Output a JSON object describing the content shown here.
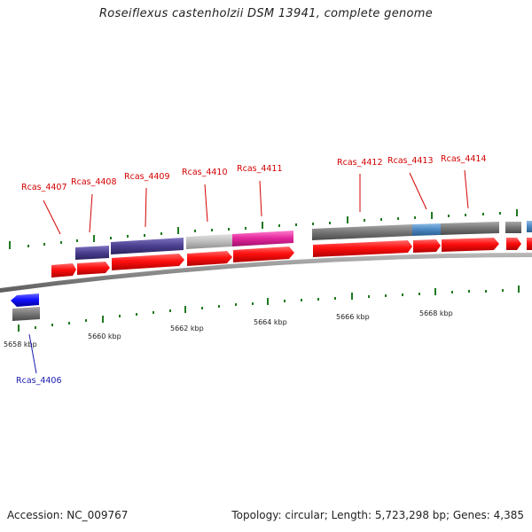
{
  "title": "Roseiflexus castenholzii DSM 13941, complete genome",
  "footer": {
    "accession": "Accession: NC_009767",
    "summary": "Topology: circular; Length: 5,723,298 bp; Genes: 4,385"
  },
  "colors": {
    "forward_cds": "#ff1010",
    "reverse_cds": "#1010ff",
    "backbone": "#8a8a8a",
    "tick": "#1f7a1f",
    "label_forward": "#d40000",
    "label_reverse": "#1a1ab0",
    "category_darkslate": "#4a3f8f",
    "category_gray": "#7a7a7a",
    "category_lightgray": "#bdbdbd",
    "category_magenta": "#e2259b",
    "category_steelblue": "#4a86c0"
  },
  "scale": {
    "kbp_labels": [
      "5658 kbp",
      "5660 kbp",
      "5662 kbp",
      "5664 kbp",
      "5666 kbp",
      "5668 kbp"
    ]
  },
  "genes": [
    {
      "label": "Rcas_4406",
      "strand": "reverse"
    },
    {
      "label": "Rcas_4407",
      "strand": "forward"
    },
    {
      "label": "Rcas_4408",
      "strand": "forward"
    },
    {
      "label": "Rcas_4409",
      "strand": "forward"
    },
    {
      "label": "Rcas_4410",
      "strand": "forward"
    },
    {
      "label": "Rcas_4411",
      "strand": "forward"
    },
    {
      "label": "Rcas_4412",
      "strand": "forward"
    },
    {
      "label": "Rcas_4413",
      "strand": "forward"
    },
    {
      "label": "Rcas_4414",
      "strand": "forward"
    }
  ]
}
